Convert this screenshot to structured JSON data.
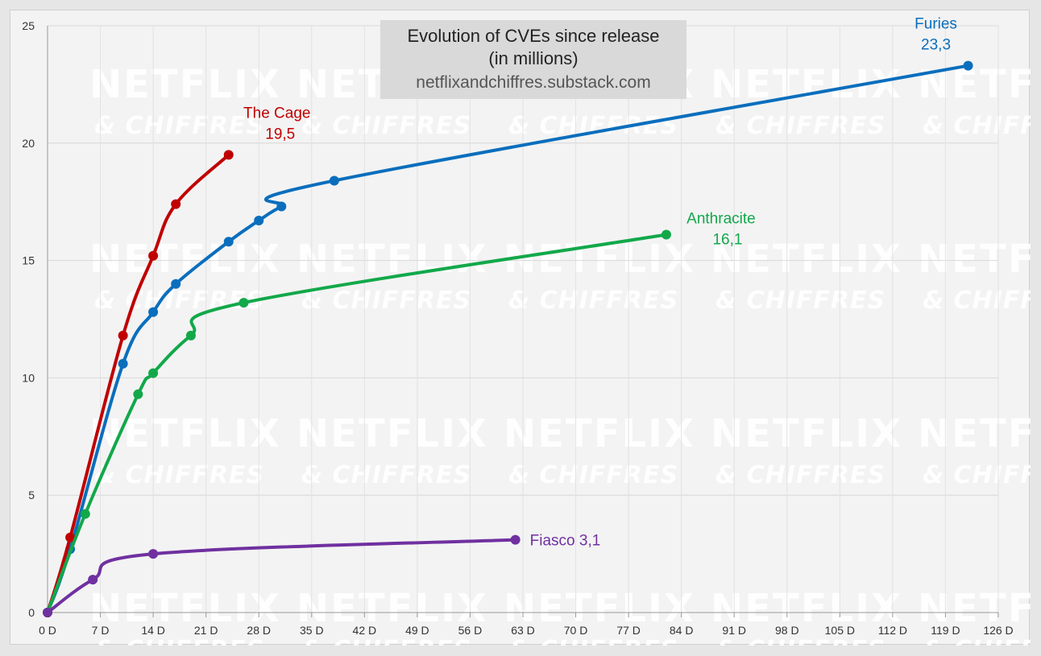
{
  "chart_data": {
    "type": "line",
    "title": "Evolution of CVEs since release",
    "subtitle": "(in millions)",
    "source": "netflixandchiffres.substack.com",
    "watermark": {
      "line1": "NETFLIX",
      "line2": "& CHIFFRES"
    },
    "xlim": [
      0,
      126
    ],
    "ylim": [
      0,
      25
    ],
    "x_ticks": [
      0,
      7,
      14,
      21,
      28,
      35,
      42,
      49,
      56,
      63,
      70,
      77,
      84,
      91,
      98,
      105,
      112,
      119,
      126
    ],
    "x_tick_labels": [
      "0 D",
      "7 D",
      "14 D",
      "21 D",
      "28 D",
      "35 D",
      "42 D",
      "49 D",
      "56 D",
      "63 D",
      "70 D",
      "77 D",
      "84 D",
      "91 D",
      "98 D",
      "105 D",
      "112 D",
      "119 D",
      "126 D"
    ],
    "y_ticks": [
      0,
      5,
      10,
      15,
      20,
      25
    ],
    "y_tick_labels": [
      "0",
      "5",
      "10",
      "15",
      "20",
      "25"
    ],
    "grid": true,
    "legend": "none",
    "series": [
      {
        "name": "The Cage",
        "end_label": "19,5",
        "color": "#c00000",
        "x": [
          0,
          3,
          10,
          14,
          17,
          24
        ],
        "y": [
          0,
          3.2,
          11.8,
          15.2,
          17.4,
          19.5
        ]
      },
      {
        "name": "Furies",
        "end_label": "23,3",
        "color": "#0a6ebd",
        "x": [
          0,
          3,
          10,
          14,
          17,
          24,
          28,
          31,
          38,
          122
        ],
        "y": [
          0,
          2.7,
          10.6,
          12.8,
          14.0,
          15.8,
          16.7,
          17.3,
          18.4,
          23.3
        ]
      },
      {
        "name": "Anthracite",
        "end_label": "16,1",
        "color": "#12a84a",
        "x": [
          0,
          5,
          12,
          14,
          19,
          26,
          82
        ],
        "y": [
          0,
          4.2,
          9.3,
          10.2,
          11.8,
          13.2,
          16.1
        ]
      },
      {
        "name": "Fiasco",
        "end_label": "3,1",
        "color": "#7030a0",
        "x": [
          0,
          6,
          14,
          62
        ],
        "y": [
          0,
          1.4,
          2.5,
          3.1
        ]
      }
    ]
  }
}
